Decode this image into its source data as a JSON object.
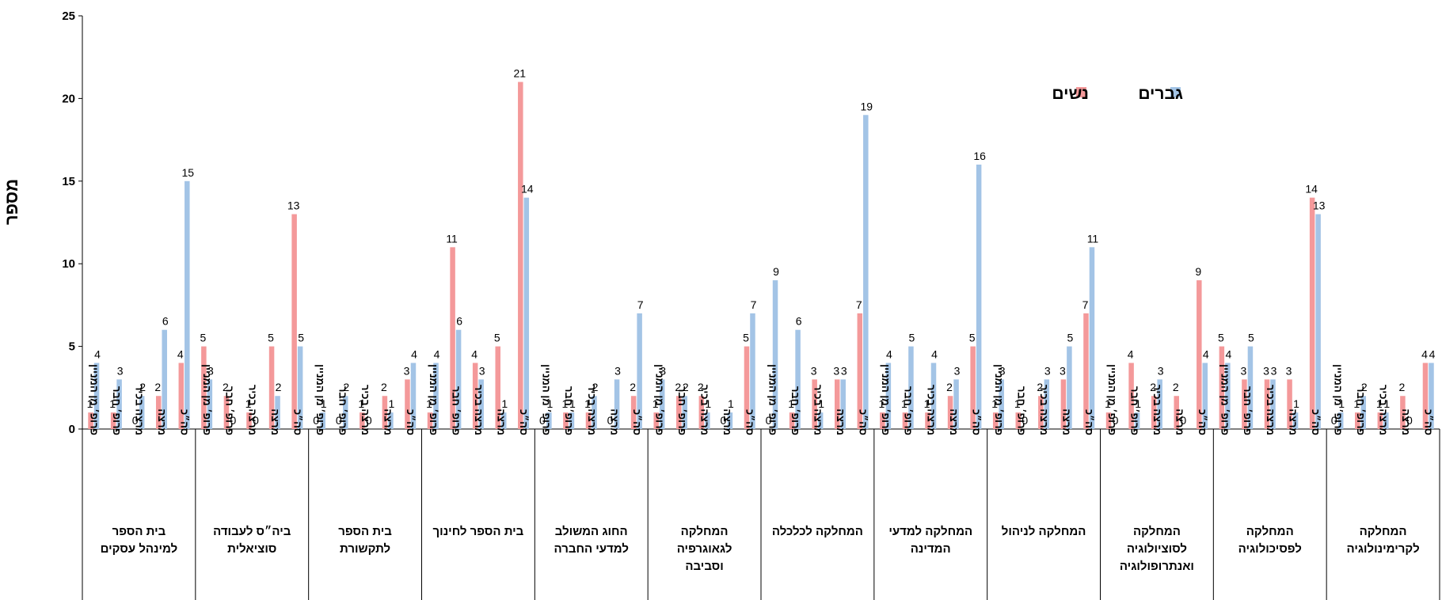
{
  "chart_data": {
    "type": "bar",
    "ylabel": "מספר",
    "ylim": [
      0,
      25
    ],
    "yticks": [
      0,
      5,
      10,
      15,
      20,
      25
    ],
    "grid": false,
    "legend_position": "top-right",
    "colors": {
      "women": "#f4999a",
      "men": "#a3c4e6"
    },
    "series": [
      {
        "key": "women",
        "name": "נשים"
      },
      {
        "key": "men",
        "name": "גברים"
      }
    ],
    "rank_labels": [
      "פרופ׳ מן המניין",
      "פרופ׳ חבר",
      "מרצה בכיר",
      "מרצה",
      "סה״כ"
    ],
    "groups": [
      {
        "name": [
          "בית הספר",
          "למינהל עסקים"
        ],
        "women": [
          1,
          1,
          0,
          2,
          4
        ],
        "men": [
          4,
          3,
          2,
          6,
          15
        ]
      },
      {
        "name": [
          "ביה״ס לעבודה",
          "סוציאלית"
        ],
        "women": [
          5,
          2,
          1,
          5,
          13
        ],
        "men": [
          3,
          0,
          0,
          2,
          5
        ]
      },
      {
        "name": [
          "בית הספר",
          "לתקשורת"
        ],
        "women": [
          0,
          0,
          1,
          2,
          3
        ],
        "men": [
          1,
          2,
          0,
          1,
          4
        ]
      },
      {
        "name": [
          "בית הספר לחינוך"
        ],
        "women": [
          1,
          11,
          4,
          5,
          21
        ],
        "men": [
          4,
          6,
          3,
          1,
          14
        ]
      },
      {
        "name": [
          "החוג המשולב",
          "למדעי החברה"
        ],
        "women": [
          0,
          1,
          1,
          0,
          2
        ],
        "men": [
          1,
          1,
          2,
          3,
          7
        ]
      },
      {
        "name": [
          "המחלקה",
          "לגאוגרפיה",
          "וסביבה"
        ],
        "women": [
          1,
          2,
          2,
          0,
          5
        ],
        "men": [
          3,
          2,
          1,
          1,
          7
        ]
      },
      {
        "name": [
          "המחלקה לכלכלה"
        ],
        "women": [
          0,
          1,
          3,
          3,
          7
        ],
        "men": [
          9,
          6,
          1,
          3,
          19
        ]
      },
      {
        "name": [
          "המחלקה למדעי",
          "המדינה"
        ],
        "women": [
          1,
          1,
          1,
          2,
          5
        ],
        "men": [
          4,
          5,
          4,
          3,
          16
        ]
      },
      {
        "name": [
          "המחלקה לניהול"
        ],
        "women": [
          1,
          1,
          2,
          3,
          7
        ],
        "men": [
          3,
          0,
          3,
          5,
          11
        ]
      },
      {
        "name": [
          "המחלקה",
          "לסוציולוגיה",
          "ואנתרופולוגיה"
        ],
        "women": [
          1,
          4,
          2,
          2,
          9
        ],
        "men": [
          0,
          1,
          3,
          0,
          4
        ]
      },
      {
        "name": [
          "המחלקה",
          "לפסיכולוגיה"
        ],
        "women": [
          5,
          3,
          3,
          3,
          14
        ],
        "men": [
          4,
          5,
          3,
          1,
          13
        ]
      },
      {
        "name": [
          "המחלקה",
          "לקרימינולוגיה"
        ],
        "women": [
          0,
          1,
          1,
          2,
          4
        ],
        "men": [
          1,
          2,
          1,
          0,
          4
        ]
      }
    ]
  }
}
